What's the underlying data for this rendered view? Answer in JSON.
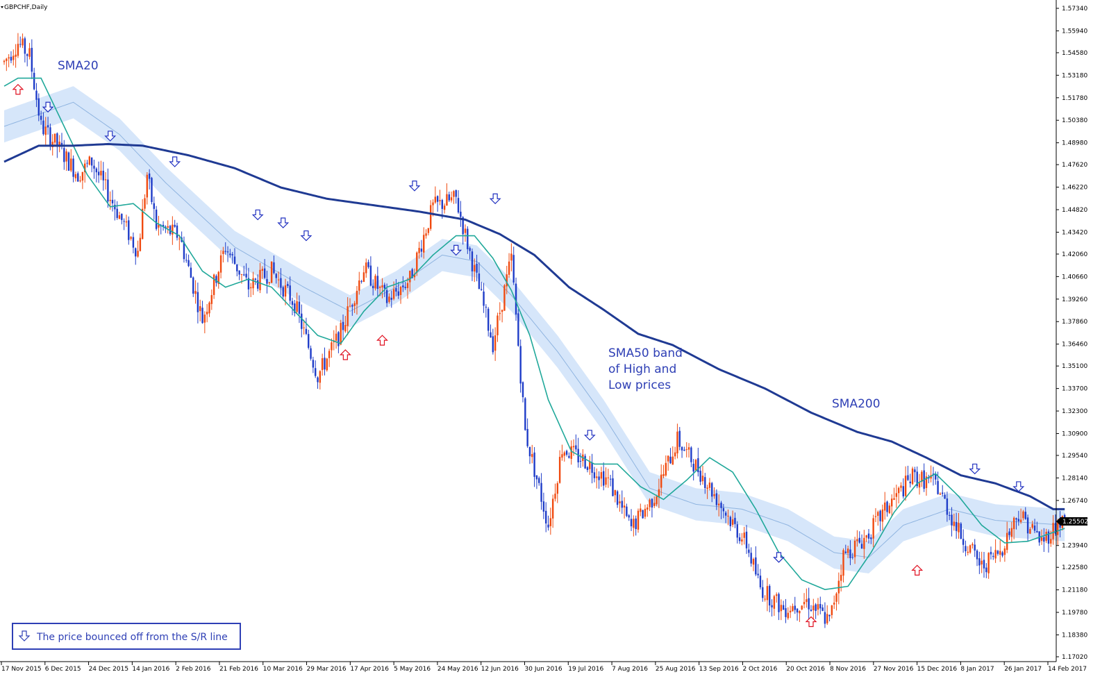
{
  "window": {
    "title": "GBPCHF,Daily"
  },
  "chart_data": {
    "type": "candlestick",
    "symbol": "GBPCHF",
    "timeframe": "Daily",
    "ylim": [
      1.1702,
      1.5734
    ],
    "y_ticks": [
      1.5734,
      1.5594,
      1.5458,
      1.5318,
      1.5178,
      1.5038,
      1.4898,
      1.4762,
      1.4622,
      1.4482,
      1.4342,
      1.4206,
      1.4066,
      1.3926,
      1.3786,
      1.3646,
      1.351,
      1.337,
      1.323,
      1.309,
      1.2954,
      1.2814,
      1.2674,
      1.2394,
      1.2258,
      1.2118,
      1.1978,
      1.1838,
      1.1702
    ],
    "y_tick_labels": [
      "1.57340",
      "1.55940",
      "1.54580",
      "1.53180",
      "1.51780",
      "1.50380",
      "1.48980",
      "1.47620",
      "1.46220",
      "1.44820",
      "1.43420",
      "1.42060",
      "1.40660",
      "1.39260",
      "1.37860",
      "1.36460",
      "1.35100",
      "1.33700",
      "1.32300",
      "1.30900",
      "1.29540",
      "1.28140",
      "1.26740",
      "1.23940",
      "1.22580",
      "1.21180",
      "1.19780",
      "1.18380",
      "1.17020"
    ],
    "current_price": "1.25502",
    "x_tick_labels": [
      "17 Nov 2015",
      "6 Dec 2015",
      "24 Dec 2015",
      "14 Jan 2016",
      "2 Feb 2016",
      "21 Feb 2016",
      "10 Mar 2016",
      "29 Mar 2016",
      "17 Apr 2016",
      "5 May 2016",
      "24 May 2016",
      "12 Jun 2016",
      "30 Jun 2016",
      "19 Jul 2016",
      "7 Aug 2016",
      "25 Aug 2016",
      "13 Sep 2016",
      "2 Oct 2016",
      "20 Oct 2016",
      "8 Nov 2016",
      "27 Nov 2016",
      "15 Dec 2016",
      "8 Jan 2017",
      "26 Jan 2017",
      "14 Feb 2017"
    ],
    "price_anchors": [
      [
        0,
        1.54
      ],
      [
        6,
        1.552
      ],
      [
        11,
        1.544
      ],
      [
        16,
        1.5
      ],
      [
        22,
        1.49
      ],
      [
        32,
        1.47
      ],
      [
        38,
        1.478
      ],
      [
        48,
        1.45
      ],
      [
        58,
        1.422
      ],
      [
        62,
        1.47
      ],
      [
        66,
        1.438
      ],
      [
        76,
        1.432
      ],
      [
        86,
        1.38
      ],
      [
        96,
        1.425
      ],
      [
        106,
        1.4
      ],
      [
        116,
        1.41
      ],
      [
        126,
        1.39
      ],
      [
        136,
        1.345
      ],
      [
        146,
        1.372
      ],
      [
        156,
        1.412
      ],
      [
        166,
        1.392
      ],
      [
        176,
        1.405
      ],
      [
        186,
        1.45
      ],
      [
        196,
        1.455
      ],
      [
        204,
        1.41
      ],
      [
        212,
        1.365
      ],
      [
        220,
        1.418
      ],
      [
        226,
        1.31
      ],
      [
        236,
        1.252
      ],
      [
        242,
        1.3
      ],
      [
        252,
        1.292
      ],
      [
        262,
        1.28
      ],
      [
        272,
        1.25
      ],
      [
        282,
        1.27
      ],
      [
        292,
        1.305
      ],
      [
        302,
        1.285
      ],
      [
        312,
        1.262
      ],
      [
        322,
        1.24
      ],
      [
        328,
        1.213
      ],
      [
        338,
        1.2
      ],
      [
        348,
        1.205
      ],
      [
        358,
        1.192
      ],
      [
        364,
        1.233
      ],
      [
        374,
        1.245
      ],
      [
        384,
        1.265
      ],
      [
        394,
        1.282
      ],
      [
        404,
        1.278
      ],
      [
        414,
        1.248
      ],
      [
        424,
        1.226
      ],
      [
        432,
        1.236
      ],
      [
        440,
        1.26
      ],
      [
        450,
        1.242
      ],
      [
        458,
        1.254
      ]
    ],
    "series": [
      {
        "name": "SMA20",
        "color": "#20a89a",
        "anchors": [
          [
            0,
            1.525
          ],
          [
            6,
            1.53
          ],
          [
            16,
            1.53
          ],
          [
            26,
            1.5
          ],
          [
            36,
            1.47
          ],
          [
            46,
            1.45
          ],
          [
            56,
            1.452
          ],
          [
            66,
            1.44
          ],
          [
            76,
            1.432
          ],
          [
            86,
            1.41
          ],
          [
            96,
            1.4
          ],
          [
            106,
            1.405
          ],
          [
            116,
            1.4
          ],
          [
            126,
            1.385
          ],
          [
            136,
            1.37
          ],
          [
            146,
            1.365
          ],
          [
            156,
            1.385
          ],
          [
            166,
            1.4
          ],
          [
            176,
            1.405
          ],
          [
            186,
            1.42
          ],
          [
            196,
            1.432
          ],
          [
            204,
            1.432
          ],
          [
            212,
            1.418
          ],
          [
            220,
            1.398
          ],
          [
            228,
            1.37
          ],
          [
            236,
            1.33
          ],
          [
            246,
            1.298
          ],
          [
            256,
            1.29
          ],
          [
            266,
            1.29
          ],
          [
            276,
            1.276
          ],
          [
            286,
            1.268
          ],
          [
            296,
            1.28
          ],
          [
            306,
            1.294
          ],
          [
            316,
            1.285
          ],
          [
            326,
            1.262
          ],
          [
            336,
            1.235
          ],
          [
            346,
            1.218
          ],
          [
            356,
            1.212
          ],
          [
            366,
            1.214
          ],
          [
            376,
            1.235
          ],
          [
            386,
            1.26
          ],
          [
            396,
            1.278
          ],
          [
            404,
            1.284
          ],
          [
            414,
            1.27
          ],
          [
            424,
            1.252
          ],
          [
            434,
            1.241
          ],
          [
            444,
            1.242
          ],
          [
            454,
            1.247
          ],
          [
            460,
            1.25
          ]
        ]
      },
      {
        "name": "SMA50 High",
        "color": "#7aa0d8",
        "anchors": [
          [
            0,
            1.51
          ],
          [
            30,
            1.525
          ],
          [
            50,
            1.505
          ],
          [
            70,
            1.475
          ],
          [
            100,
            1.435
          ],
          [
            130,
            1.41
          ],
          [
            150,
            1.395
          ],
          [
            170,
            1.41
          ],
          [
            190,
            1.43
          ],
          [
            205,
            1.426
          ],
          [
            220,
            1.405
          ],
          [
            240,
            1.37
          ],
          [
            260,
            1.33
          ],
          [
            280,
            1.285
          ],
          [
            300,
            1.275
          ],
          [
            320,
            1.272
          ],
          [
            340,
            1.262
          ],
          [
            360,
            1.245
          ],
          [
            375,
            1.242
          ],
          [
            390,
            1.262
          ],
          [
            410,
            1.272
          ],
          [
            430,
            1.265
          ],
          [
            460,
            1.262
          ]
        ]
      },
      {
        "name": "SMA50 Low",
        "color": "#7aa0d8",
        "anchors": [
          [
            0,
            1.49
          ],
          [
            30,
            1.505
          ],
          [
            50,
            1.485
          ],
          [
            70,
            1.455
          ],
          [
            100,
            1.415
          ],
          [
            130,
            1.39
          ],
          [
            150,
            1.375
          ],
          [
            170,
            1.39
          ],
          [
            190,
            1.41
          ],
          [
            205,
            1.406
          ],
          [
            220,
            1.385
          ],
          [
            240,
            1.35
          ],
          [
            260,
            1.31
          ],
          [
            280,
            1.265
          ],
          [
            300,
            1.255
          ],
          [
            320,
            1.252
          ],
          [
            340,
            1.242
          ],
          [
            360,
            1.225
          ],
          [
            375,
            1.222
          ],
          [
            390,
            1.242
          ],
          [
            410,
            1.252
          ],
          [
            430,
            1.245
          ],
          [
            460,
            1.242
          ]
        ]
      },
      {
        "name": "SMA200",
        "color": "#1f3a93",
        "anchors": [
          [
            0,
            1.478
          ],
          [
            15,
            1.488
          ],
          [
            30,
            1.488
          ],
          [
            45,
            1.489
          ],
          [
            60,
            1.488
          ],
          [
            80,
            1.482
          ],
          [
            100,
            1.474
          ],
          [
            120,
            1.462
          ],
          [
            140,
            1.455
          ],
          [
            160,
            1.451
          ],
          [
            180,
            1.447
          ],
          [
            200,
            1.442
          ],
          [
            215,
            1.433
          ],
          [
            230,
            1.42
          ],
          [
            245,
            1.4
          ],
          [
            260,
            1.386
          ],
          [
            275,
            1.371
          ],
          [
            290,
            1.364
          ],
          [
            310,
            1.349
          ],
          [
            330,
            1.337
          ],
          [
            350,
            1.322
          ],
          [
            370,
            1.31
          ],
          [
            385,
            1.304
          ],
          [
            400,
            1.294
          ],
          [
            415,
            1.283
          ],
          [
            430,
            1.278
          ],
          [
            445,
            1.27
          ],
          [
            455,
            1.262
          ]
        ]
      }
    ],
    "annotations": {
      "sma20_label": "SMA20",
      "sma50_label_1": "SMA50 band",
      "sma50_label_2": "of High and",
      "sma50_label_3": "Low prices",
      "sma200_label": "SMA200"
    },
    "legend": {
      "text": "The price bounced off from the S/R line",
      "icon": "down-arrow-icon"
    },
    "colors": {
      "bull": "#f04a10",
      "bear": "#1e3cc8",
      "band_fill": "#d6e6fa",
      "arrow_up": "#e01020",
      "arrow_down": "#2030c0"
    },
    "arrows_down": [
      [
        19,
        1.512
      ],
      [
        46,
        1.494
      ],
      [
        74,
        1.478
      ],
      [
        110,
        1.445
      ],
      [
        121,
        1.44
      ],
      [
        131,
        1.432
      ],
      [
        178,
        1.463
      ],
      [
        196,
        1.423
      ],
      [
        213,
        1.455
      ],
      [
        254,
        1.308
      ],
      [
        336,
        1.232
      ],
      [
        421,
        1.287
      ],
      [
        440,
        1.276
      ]
    ],
    "arrows_up": [
      [
        6,
        1.523
      ],
      [
        148,
        1.358
      ],
      [
        164,
        1.367
      ],
      [
        350,
        1.192
      ],
      [
        396,
        1.224
      ]
    ]
  }
}
